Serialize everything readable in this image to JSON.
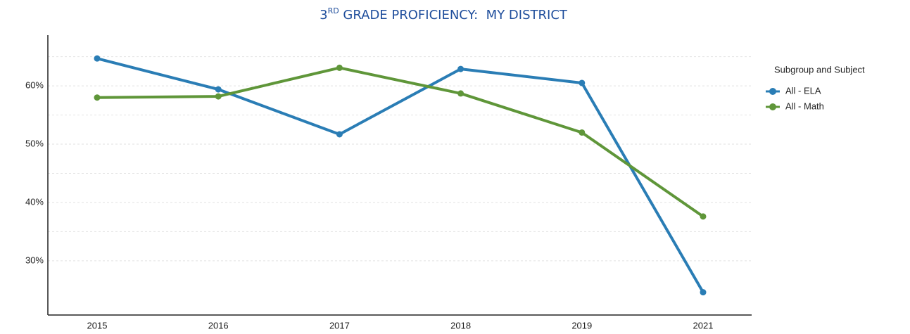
{
  "chart_data": {
    "type": "line",
    "title": {
      "base": "3",
      "superscript": "RD",
      "rest": " GRADE PROFICIENCY:  MY DISTRICT"
    },
    "categories": [
      "2015",
      "2016",
      "2017",
      "2018",
      "2019",
      "2021"
    ],
    "series": [
      {
        "name": "All - ELA",
        "color": "#2a7db5",
        "values": [
          64.7,
          59.4,
          51.7,
          62.9,
          60.5,
          24.6
        ]
      },
      {
        "name": "All - Math",
        "color": "#5f9639",
        "values": [
          58.0,
          58.2,
          63.1,
          58.7,
          52.0,
          37.6
        ]
      }
    ],
    "ylim": [
      20.7,
      68.7
    ],
    "yticks": [
      {
        "value": 30,
        "label": "30%"
      },
      {
        "value": 40,
        "label": "40%"
      },
      {
        "value": 50,
        "label": "50%"
      },
      {
        "value": 60,
        "label": "60%"
      }
    ],
    "minor_yticks": [
      35,
      45,
      55,
      65
    ],
    "grid": true,
    "legend": {
      "title": "Subgroup and Subject",
      "position": "right"
    }
  }
}
